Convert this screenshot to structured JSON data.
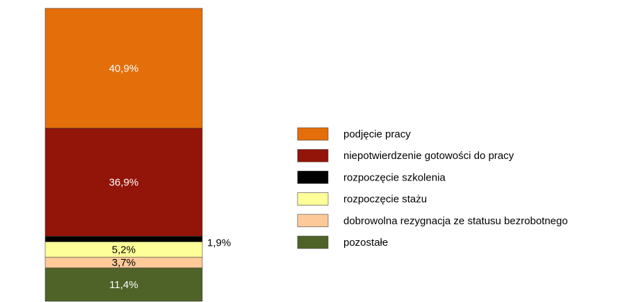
{
  "chart_data": {
    "type": "stacked_bar",
    "series": [
      {
        "name": "podjęcie pracy",
        "color": "#e46f0a",
        "values": [
          40.9
        ],
        "value_labels": [
          "40,9%"
        ]
      },
      {
        "name": "niepotwierdzenie gotowości do pracy",
        "color": "#931409",
        "values": [
          36.9
        ],
        "value_labels": [
          "36,9%"
        ]
      },
      {
        "name": "rozpoczęcie szkolenia",
        "color": "#000000",
        "values": [
          1.9
        ],
        "value_labels": [
          "1,9%"
        ]
      },
      {
        "name": "rozpoczęcie stażu",
        "color": "#ffff99",
        "values": [
          5.2
        ],
        "value_labels": [
          "5,2%"
        ]
      },
      {
        "name": "dobrowolna rezygnacja ze statusu bezrobotnego",
        "color": "#fdc999",
        "values": [
          3.7
        ],
        "value_labels": [
          "3,7%"
        ]
      },
      {
        "name": "pozostałe",
        "color": "#4f6228",
        "values": [
          11.4
        ],
        "value_labels": [
          "11,4%"
        ]
      }
    ]
  }
}
